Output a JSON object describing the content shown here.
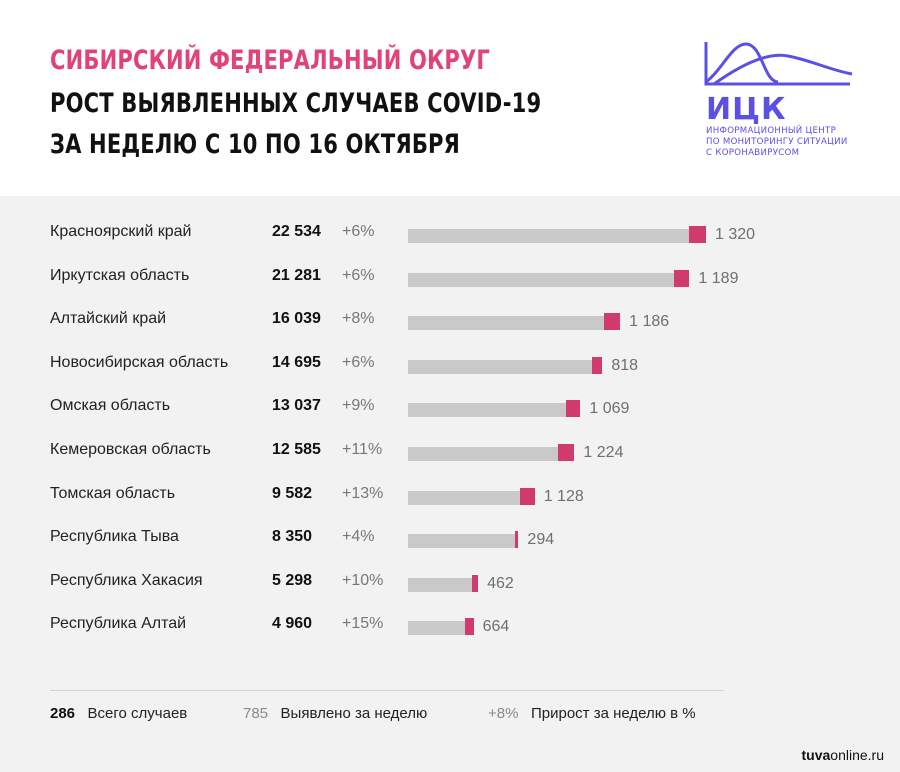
{
  "header": {
    "title_line1": "Сибирский федеральный округ",
    "title_line2": "Рост выявленных случаев COVID-19",
    "title_line3": "за неделю с 10 по 16 октября",
    "accent_color": "#e0427a"
  },
  "logo": {
    "name": "ИЦК",
    "subtitle": [
      "Информационный центр",
      "по мониторингу ситуации",
      "с коронавирусом"
    ],
    "color": "#5b50e6"
  },
  "chart_data": {
    "type": "bar",
    "orientation": "horizontal",
    "stacked": true,
    "categories": [
      "Красноярский край",
      "Иркутская область",
      "Алтайский край",
      "Новосибирская область",
      "Омская область",
      "Кемеровская область",
      "Томская область",
      "Республика Тыва",
      "Республика Хакасия",
      "Республика Алтай"
    ],
    "totals_labels": [
      "22 534",
      "21 281",
      "16 039",
      "14 695",
      "13 037",
      "12 585",
      "9 582",
      "8 350",
      "5 298",
      "4 960"
    ],
    "totals": [
      22534,
      21281,
      16039,
      14695,
      13037,
      12585,
      9582,
      8350,
      5298,
      4960
    ],
    "growth_labels": [
      "+6%",
      "+6%",
      "+8%",
      "+6%",
      "+9%",
      "+11%",
      "+13%",
      "+4%",
      "+10%",
      "+15%"
    ],
    "weekly_labels": [
      "1 320",
      "1 189",
      "1 186",
      "818",
      "1 069",
      "1 224",
      "1 128",
      "294",
      "462",
      "664"
    ],
    "weekly_new": [
      1320,
      1189,
      1186,
      818,
      1069,
      1224,
      1128,
      294,
      462,
      664
    ],
    "colors": {
      "total": "#c9c9c9",
      "weekly": "#d03a6c"
    }
  },
  "legend": {
    "total_sample": "286",
    "total_label": "Всего случаев",
    "weekly_sample": "785",
    "weekly_label": "Выявлено за неделю",
    "growth_sample": "+8%",
    "growth_label": "Прирост за неделю в %"
  },
  "source": {
    "prefix": "tuva",
    "suffix": "online.ru"
  }
}
